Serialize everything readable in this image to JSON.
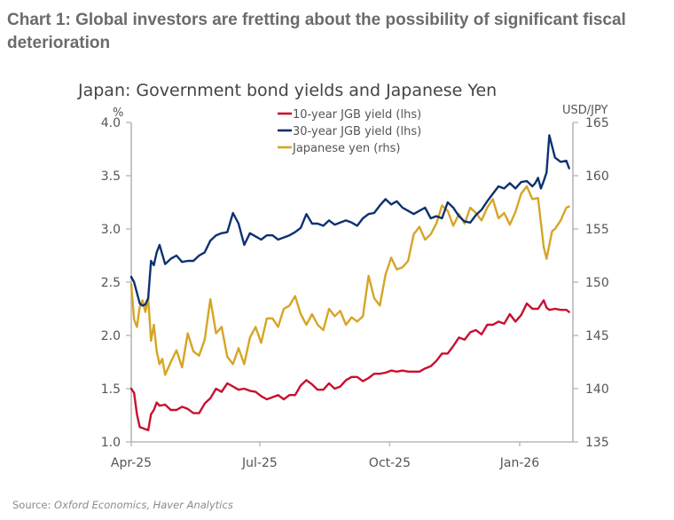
{
  "headline": "Chart 1: Global investors are fretting about the possibility of significant fiscal deterioration",
  "source": {
    "prefix": "Source: ",
    "text": "Oxford Economics, Haver Analytics"
  },
  "chart_data": {
    "type": "line",
    "title": "Japan: Government bond yields and Japanese Yen",
    "xlabel": "",
    "x_unit": "days since 1 Apr 2025",
    "x_range": [
      0,
      310
    ],
    "x_ticks": [
      {
        "value": 0,
        "label": "Apr-25"
      },
      {
        "value": 91,
        "label": "Jul-25"
      },
      {
        "value": 183,
        "label": "Oct-25"
      },
      {
        "value": 275,
        "label": "Jan-26"
      }
    ],
    "y_left": {
      "label": "%",
      "range": [
        1.0,
        4.0
      ],
      "ticks": [
        "1.0",
        "1.5",
        "2.0",
        "2.5",
        "3.0",
        "3.5",
        "4.0"
      ]
    },
    "y_right": {
      "label": "USD/JPY",
      "range": [
        135,
        165
      ],
      "ticks": [
        "135",
        "140",
        "145",
        "150",
        "155",
        "160",
        "165"
      ]
    },
    "grid": false,
    "legend_position": "top-center",
    "series": [
      {
        "name": "10-year JGB yield (lhs)",
        "axis": "left",
        "color": "#c8102e",
        "x": [
          0,
          2,
          4,
          6,
          8,
          10,
          12,
          14,
          16,
          18,
          20,
          24,
          28,
          32,
          36,
          40,
          44,
          48,
          52,
          56,
          60,
          64,
          68,
          72,
          76,
          80,
          84,
          88,
          92,
          96,
          100,
          104,
          108,
          112,
          116,
          120,
          124,
          128,
          132,
          136,
          140,
          144,
          148,
          152,
          156,
          160,
          164,
          168,
          172,
          176,
          180,
          184,
          188,
          192,
          196,
          200,
          204,
          208,
          212,
          216,
          220,
          224,
          228,
          232,
          236,
          240,
          244,
          248,
          252,
          256,
          260,
          264,
          268,
          272,
          276,
          280,
          284,
          288,
          292,
          294,
          296,
          300,
          304,
          308,
          310
        ],
        "values": [
          1.5,
          1.46,
          1.26,
          1.14,
          1.13,
          1.12,
          1.11,
          1.26,
          1.3,
          1.37,
          1.34,
          1.35,
          1.3,
          1.3,
          1.33,
          1.31,
          1.27,
          1.27,
          1.36,
          1.41,
          1.5,
          1.47,
          1.55,
          1.52,
          1.49,
          1.5,
          1.48,
          1.47,
          1.43,
          1.4,
          1.42,
          1.44,
          1.4,
          1.44,
          1.44,
          1.53,
          1.58,
          1.54,
          1.49,
          1.49,
          1.55,
          1.5,
          1.52,
          1.58,
          1.61,
          1.61,
          1.57,
          1.6,
          1.64,
          1.64,
          1.65,
          1.67,
          1.66,
          1.67,
          1.66,
          1.66,
          1.66,
          1.69,
          1.71,
          1.76,
          1.83,
          1.83,
          1.9,
          1.98,
          1.96,
          2.03,
          2.05,
          2.01,
          2.1,
          2.1,
          2.13,
          2.11,
          2.2,
          2.13,
          2.19,
          2.3,
          2.25,
          2.25,
          2.33,
          2.26,
          2.24,
          2.25,
          2.24,
          2.24,
          2.22
        ]
      },
      {
        "name": "30-year JGB yield (lhs)",
        "axis": "left",
        "color": "#0d3170",
        "x": [
          0,
          2,
          4,
          6,
          8,
          10,
          12,
          14,
          16,
          18,
          20,
          24,
          28,
          32,
          36,
          40,
          44,
          48,
          52,
          56,
          60,
          64,
          68,
          72,
          76,
          80,
          84,
          88,
          92,
          96,
          100,
          104,
          108,
          112,
          116,
          120,
          124,
          128,
          132,
          136,
          140,
          144,
          148,
          152,
          156,
          160,
          164,
          168,
          172,
          176,
          180,
          184,
          188,
          192,
          196,
          200,
          204,
          208,
          212,
          216,
          220,
          224,
          228,
          232,
          236,
          240,
          244,
          248,
          252,
          256,
          260,
          264,
          268,
          272,
          276,
          280,
          284,
          286,
          288,
          290,
          292,
          294,
          296,
          300,
          304,
          308,
          310
        ],
        "values": [
          2.55,
          2.5,
          2.4,
          2.3,
          2.28,
          2.29,
          2.35,
          2.7,
          2.66,
          2.78,
          2.85,
          2.67,
          2.72,
          2.75,
          2.69,
          2.7,
          2.7,
          2.75,
          2.78,
          2.89,
          2.94,
          2.96,
          2.97,
          3.15,
          3.05,
          2.85,
          2.96,
          2.93,
          2.9,
          2.94,
          2.94,
          2.9,
          2.92,
          2.94,
          2.97,
          3.01,
          3.14,
          3.05,
          3.05,
          3.03,
          3.08,
          3.04,
          3.06,
          3.08,
          3.06,
          3.03,
          3.1,
          3.14,
          3.15,
          3.22,
          3.28,
          3.23,
          3.26,
          3.2,
          3.17,
          3.14,
          3.17,
          3.2,
          3.1,
          3.12,
          3.1,
          3.25,
          3.2,
          3.12,
          3.07,
          3.06,
          3.13,
          3.18,
          3.26,
          3.33,
          3.4,
          3.38,
          3.43,
          3.38,
          3.44,
          3.45,
          3.4,
          3.43,
          3.48,
          3.38,
          3.45,
          3.53,
          3.88,
          3.67,
          3.63,
          3.64,
          3.57
        ]
      },
      {
        "name": "Japanese yen (rhs)",
        "axis": "right",
        "color": "#d6a525",
        "x": [
          0,
          2,
          4,
          6,
          8,
          10,
          12,
          14,
          16,
          18,
          20,
          22,
          24,
          28,
          32,
          36,
          40,
          44,
          48,
          52,
          56,
          60,
          64,
          68,
          72,
          76,
          80,
          84,
          88,
          92,
          96,
          100,
          104,
          108,
          112,
          116,
          120,
          124,
          128,
          132,
          136,
          140,
          144,
          148,
          152,
          156,
          160,
          164,
          168,
          172,
          176,
          180,
          184,
          188,
          192,
          196,
          200,
          204,
          208,
          212,
          216,
          220,
          224,
          228,
          232,
          236,
          240,
          244,
          248,
          252,
          256,
          260,
          264,
          268,
          272,
          276,
          280,
          284,
          288,
          292,
          294,
          296,
          298,
          300,
          304,
          308,
          310
        ],
        "values": [
          149.8,
          146.5,
          145.8,
          147.7,
          148.3,
          147.2,
          148.5,
          144.5,
          146.0,
          143.5,
          142.3,
          142.8,
          141.3,
          142.5,
          143.6,
          142.0,
          145.2,
          143.5,
          143.1,
          144.6,
          148.4,
          145.2,
          145.8,
          143.0,
          142.3,
          143.8,
          142.3,
          144.8,
          145.8,
          144.3,
          146.6,
          146.6,
          145.8,
          147.5,
          147.8,
          148.7,
          147.0,
          146.0,
          147.0,
          146.0,
          145.5,
          147.5,
          146.8,
          147.3,
          146.0,
          146.7,
          146.3,
          146.8,
          150.6,
          148.5,
          147.8,
          150.7,
          152.3,
          151.2,
          151.4,
          152.0,
          154.5,
          155.2,
          154.0,
          154.5,
          155.5,
          157.2,
          156.7,
          155.3,
          156.4,
          155.5,
          157.0,
          156.5,
          155.8,
          157.0,
          157.8,
          156.0,
          156.5,
          155.4,
          156.6,
          158.3,
          159.0,
          157.8,
          157.9,
          153.3,
          152.2,
          153.5,
          154.8,
          155.0,
          155.8,
          157.0,
          157.1
        ]
      }
    ]
  }
}
